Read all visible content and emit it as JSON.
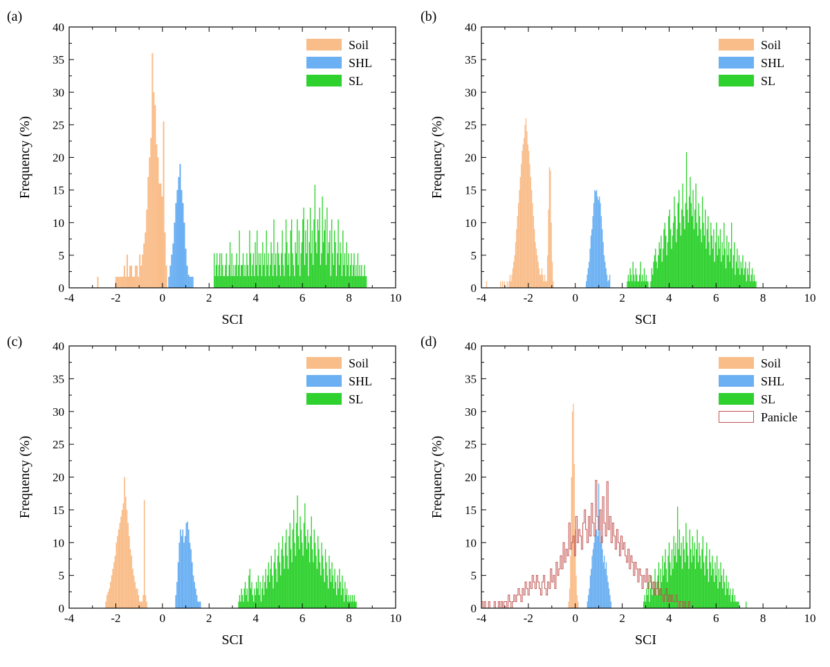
{
  "figure": {
    "description_colors": {
      "Soil": "#f9bd8a",
      "SHL": "#6bb0f2",
      "SL": "#2ed12e",
      "Panicle": "#c0504d"
    }
  },
  "chart_data": [
    {
      "panel": "(a)",
      "type": "histogram",
      "xlabel": "SCI",
      "ylabel": "Frequency (%)",
      "xlim": [
        -4,
        10
      ],
      "ylim": [
        0,
        40
      ],
      "xticks": [
        "-4",
        "-2",
        "0",
        "2",
        "4",
        "6",
        "8",
        "10"
      ],
      "yticks": [
        "0",
        "5",
        "10",
        "15",
        "20",
        "25",
        "30",
        "35",
        "40"
      ],
      "legend": [
        "Soil",
        "SHL",
        "SL"
      ],
      "series": [
        {
          "name": "Soil",
          "style": "bar",
          "color": "#f9bd8a",
          "bin_start": -2.8,
          "bin_width": 0.06,
          "values": [
            1.7,
            0,
            0,
            0,
            0,
            0,
            0,
            0,
            0,
            0,
            0,
            0,
            0,
            1.7,
            1.7,
            1.7,
            1.7,
            1.7,
            1.7,
            3.4,
            1.7,
            5.1,
            1.7,
            3.4,
            3.4,
            1.7,
            1.7,
            3.4,
            3.4,
            1.7,
            5.1,
            3.4,
            5.1,
            6.8,
            8.5,
            12,
            17,
            20,
            23,
            36,
            30,
            28,
            22,
            20,
            16,
            16,
            14,
            25.5,
            8.5,
            3.4
          ]
        },
        {
          "name": "SHL",
          "style": "bar",
          "color": "#6bb0f2",
          "bin_start": 0.25,
          "bin_width": 0.06,
          "values": [
            1.7,
            3.4,
            5.1,
            6.8,
            10,
            13,
            15,
            17,
            19,
            15,
            13,
            10,
            6,
            3.4,
            2,
            1.7,
            1.7,
            1.7
          ]
        },
        {
          "name": "SL",
          "style": "bar",
          "color": "#2ed12e",
          "bin_start": 2.2,
          "bin_width": 0.04,
          "values": [
            5.3,
            1.8,
            3.5,
            5.3,
            1.8,
            3.5,
            5.3,
            1.8,
            5.3,
            3.5,
            1.8,
            1.8,
            3.5,
            5.3,
            1.8,
            1.8,
            3.5,
            7,
            1.8,
            5.3,
            1.8,
            3.5,
            1.8,
            3.5,
            5.3,
            1.8,
            3.5,
            8.8,
            1.8,
            3.5,
            3.5,
            5.3,
            1.8,
            3.5,
            1.8,
            5.3,
            3.5,
            1.8,
            8.8,
            5.3,
            1.8,
            3.5,
            5.3,
            1.8,
            7,
            3.5,
            8.8,
            1.8,
            5.3,
            3.5,
            5.3,
            1.8,
            7,
            3.5,
            5.3,
            1.8,
            8.8,
            3.5,
            5.3,
            1.8,
            3.5,
            7,
            5.3,
            1.8,
            10.5,
            3.5,
            5.3,
            1.8,
            7,
            5.3,
            3.5,
            1.8,
            5.3,
            8.8,
            3.5,
            1.8,
            5.3,
            10.5,
            7,
            3.5,
            5.3,
            1.8,
            8.8,
            10.5,
            5.3,
            3.5,
            1.8,
            7,
            5.3,
            10.5,
            3.5,
            8.8,
            1.8,
            5.3,
            7,
            10.5,
            12.3,
            3.5,
            8.8,
            5.3,
            10.5,
            1.8,
            7,
            12.3,
            5.3,
            8.8,
            3.5,
            10.5,
            15.8,
            7,
            5.3,
            10.5,
            8.8,
            12.3,
            3.5,
            5.3,
            14,
            7,
            8.8,
            10.5,
            3.5,
            12.3,
            5.3,
            7,
            8.8,
            1.8,
            10.5,
            5.3,
            3.5,
            8.8,
            7,
            1.8,
            5.3,
            10.5,
            3.5,
            7,
            5.3,
            1.8,
            8.8,
            3.5,
            5.3,
            1.8,
            7,
            3.5,
            5.3,
            1.8,
            3.5,
            5.3,
            1.8,
            3.5,
            5.3,
            1.8,
            3.5,
            1.8,
            5.3,
            1.8,
            3.5,
            1.8,
            3.5,
            1.8,
            1.8,
            3.5,
            1.8,
            1.8
          ]
        }
      ]
    },
    {
      "panel": "(b)",
      "type": "histogram",
      "xlabel": "SCI",
      "ylabel": "Frequency (%)",
      "xlim": [
        -4,
        10
      ],
      "ylim": [
        0,
        40
      ],
      "xticks": [
        "-4",
        "-2",
        "0",
        "2",
        "4",
        "6",
        "8",
        "10"
      ],
      "yticks": [
        "0",
        "5",
        "10",
        "15",
        "20",
        "25",
        "30",
        "35",
        "40"
      ],
      "legend": [
        "Soil",
        "SHL",
        "SL"
      ],
      "series": [
        {
          "name": "Soil",
          "style": "bar",
          "color": "#f9bd8a",
          "bin_start": -3.8,
          "bin_width": 0.04,
          "values": [
            1,
            0,
            0,
            0,
            0,
            0,
            0,
            0,
            0,
            0,
            0,
            0,
            0,
            0,
            0,
            1,
            0,
            1,
            0,
            1,
            0,
            0,
            1,
            0,
            1,
            2,
            1,
            2,
            3,
            4,
            5,
            7,
            9,
            11,
            13,
            15,
            17,
            19,
            21,
            22,
            23,
            25,
            26,
            24,
            22,
            21,
            19,
            17,
            15,
            13,
            11,
            9,
            7,
            6,
            5,
            4,
            3,
            2,
            2,
            3,
            2,
            1,
            2,
            1,
            1,
            5,
            12,
            18.5,
            18,
            10,
            4,
            1
          ]
        },
        {
          "name": "SHL",
          "style": "bar",
          "color": "#6bb0f2",
          "bin_start": 0.45,
          "bin_width": 0.04,
          "values": [
            1,
            2,
            3,
            4,
            6,
            8,
            9,
            11,
            13,
            15,
            14.8,
            15,
            14,
            13.5,
            14,
            13,
            11,
            9,
            7,
            5,
            4,
            3,
            2,
            1,
            1.2,
            2
          ]
        },
        {
          "name": "SL",
          "style": "bar",
          "color": "#2ed12e",
          "bin_start": 2.2,
          "bin_width": 0.04,
          "values": [
            1,
            2,
            1,
            3,
            2,
            1,
            4,
            2,
            1,
            3,
            2,
            1,
            1,
            2,
            4,
            1,
            2,
            1,
            3,
            1,
            2,
            1,
            1,
            0,
            0,
            1,
            3,
            2,
            4,
            5,
            6,
            4,
            3,
            5,
            7,
            6,
            8,
            4,
            6,
            9,
            10,
            8,
            5,
            7,
            11,
            12,
            9,
            6,
            8,
            10,
            14,
            11,
            7,
            9,
            13,
            15,
            10,
            8,
            12,
            16,
            11,
            9,
            13,
            20.8,
            12,
            10,
            14,
            17,
            13,
            11,
            15,
            9,
            12,
            16,
            10,
            8,
            13,
            11,
            9,
            7,
            14,
            10,
            8,
            12,
            6,
            9,
            11,
            7,
            5,
            10,
            8,
            6,
            9,
            4,
            7,
            10,
            5,
            8,
            6,
            9,
            4,
            7,
            5,
            10,
            6,
            3,
            8,
            5,
            7,
            4,
            6,
            10,
            3,
            5,
            7,
            2,
            4,
            6,
            3,
            5,
            2,
            4,
            3,
            5,
            2,
            3,
            4,
            1,
            3,
            2,
            4,
            1,
            2,
            3,
            1,
            2,
            1,
            1
          ]
        }
      ]
    },
    {
      "panel": "(c)",
      "type": "histogram",
      "xlabel": "SCI",
      "ylabel": "Frequency (%)",
      "xlim": [
        -4,
        10
      ],
      "ylim": [
        0,
        40
      ],
      "xticks": [
        "-4",
        "-2",
        "0",
        "2",
        "4",
        "6",
        "8",
        "10"
      ],
      "yticks": [
        "0",
        "5",
        "10",
        "15",
        "20",
        "25",
        "30",
        "35",
        "40"
      ],
      "legend": [
        "Soil",
        "SHL",
        "SL"
      ],
      "series": [
        {
          "name": "Soil",
          "style": "bar",
          "color": "#f9bd8a",
          "bin_start": -2.45,
          "bin_width": 0.05,
          "values": [
            1,
            2,
            2.5,
            3,
            4,
            5,
            6,
            7,
            8,
            10,
            11,
            12,
            13,
            14,
            15,
            16,
            20,
            17,
            15,
            13,
            11,
            9,
            8,
            6,
            5,
            4,
            3,
            3,
            2,
            1,
            1,
            1,
            2,
            16.5,
            2,
            1
          ]
        },
        {
          "name": "SHL",
          "style": "bar",
          "color": "#6bb0f2",
          "bin_start": 0.55,
          "bin_width": 0.05,
          "values": [
            2,
            4,
            7,
            10,
            12,
            11,
            12,
            10,
            11,
            13,
            13.2,
            12,
            10,
            9,
            7,
            5,
            4,
            3,
            2,
            1,
            1,
            1
          ]
        },
        {
          "name": "SL",
          "style": "bar",
          "color": "#2ed12e",
          "bin_start": 3.25,
          "bin_width": 0.04,
          "values": [
            1,
            2,
            1,
            3,
            2,
            1,
            3,
            4,
            2,
            3,
            1,
            5,
            6,
            3,
            4,
            2,
            1,
            3,
            2,
            4,
            3,
            5,
            2,
            4,
            1,
            3,
            5,
            2,
            4,
            6,
            3,
            5,
            7,
            4,
            6,
            8,
            5,
            3,
            7,
            9,
            6,
            4,
            8,
            10,
            7,
            5,
            9,
            11,
            8,
            6,
            10,
            12,
            8,
            6,
            11,
            13,
            9,
            7,
            12,
            15,
            10,
            8,
            13,
            17.2,
            11,
            9,
            14,
            12,
            10,
            8,
            13,
            16,
            11,
            9,
            12,
            10,
            7,
            11,
            14,
            9,
            7,
            12,
            10,
            8,
            6,
            11,
            9,
            7,
            5,
            10,
            8,
            6,
            4,
            9,
            7,
            5,
            3,
            8,
            6,
            4,
            7,
            5,
            3,
            6,
            4,
            2,
            5,
            3,
            6,
            4,
            2,
            5,
            3,
            1,
            4,
            2,
            3,
            1,
            2,
            1,
            2,
            1,
            2,
            1,
            2,
            1,
            1
          ]
        }
      ]
    },
    {
      "panel": "(d)",
      "type": "histogram",
      "xlabel": "SCI",
      "ylabel": "Frequency (%)",
      "xlim": [
        -4,
        10
      ],
      "ylim": [
        0,
        40
      ],
      "xticks": [
        "-4",
        "-2",
        "0",
        "2",
        "4",
        "6",
        "8",
        "10"
      ],
      "yticks": [
        "0",
        "5",
        "10",
        "15",
        "20",
        "25",
        "30",
        "35",
        "40"
      ],
      "legend": [
        "Soil",
        "SHL",
        "SL",
        "Panicle"
      ],
      "series": [
        {
          "name": "Soil",
          "style": "bar",
          "color": "#f9bd8a",
          "bin_start": -0.3,
          "bin_width": 0.04,
          "values": [
            1,
            3,
            8,
            20,
            30,
            31.2,
            22,
            12,
            5,
            2,
            1
          ]
        },
        {
          "name": "SHL",
          "style": "bar",
          "color": "#6bb0f2",
          "bin_start": 0.5,
          "bin_width": 0.04,
          "values": [
            1,
            2,
            3,
            5,
            6,
            8,
            9,
            10,
            11,
            12,
            12,
            11,
            19,
            12,
            10,
            11,
            9,
            7,
            8,
            6,
            7,
            5,
            4,
            3,
            2,
            1
          ]
        },
        {
          "name": "SL",
          "style": "bar",
          "color": "#2ed12e",
          "bin_start": 2.9,
          "bin_width": 0.04,
          "values": [
            1,
            2,
            1,
            3,
            2,
            4,
            1,
            3,
            5,
            2,
            4,
            3,
            6,
            4,
            2,
            5,
            7,
            3,
            6,
            4,
            8,
            5,
            7,
            9,
            6,
            4,
            8,
            10,
            7,
            5,
            9,
            6,
            11,
            8,
            10,
            7,
            15.5,
            9,
            12,
            8,
            10,
            6,
            11,
            9,
            7,
            13,
            10,
            8,
            6,
            12,
            9,
            7,
            11,
            8,
            10,
            6,
            9,
            12,
            7,
            10,
            8,
            6,
            9,
            11,
            7,
            5,
            8,
            10,
            6,
            4,
            9,
            7,
            5,
            8,
            6,
            4,
            7,
            5,
            8,
            3,
            6,
            4,
            7,
            5,
            3,
            6,
            4,
            2,
            5,
            3,
            4,
            2,
            3,
            1,
            2,
            3,
            1,
            2,
            1,
            1,
            1,
            1,
            0,
            0,
            0,
            0,
            0,
            0,
            0,
            1
          ]
        },
        {
          "name": "Panicle",
          "style": "outline",
          "color": "#c0504d",
          "bin_start": -4.0,
          "bin_width": 0.06,
          "values": [
            1,
            0,
            1,
            0,
            0,
            1,
            0,
            0,
            0,
            1,
            0,
            0,
            1,
            0,
            1,
            0,
            1,
            1,
            0,
            2,
            1,
            0,
            1,
            2,
            1,
            2,
            3,
            2,
            1,
            3,
            2,
            4,
            3,
            2,
            4,
            3,
            5,
            4,
            3,
            5,
            4,
            3,
            2,
            4,
            5,
            3,
            2,
            4,
            3,
            6,
            4,
            5,
            3,
            7,
            5,
            6,
            8,
            6,
            10,
            7,
            9,
            8,
            13,
            9,
            10,
            11,
            8,
            14,
            10,
            12,
            11,
            9,
            13,
            15,
            12,
            10,
            14,
            11,
            16,
            13,
            11,
            19.5,
            14,
            12,
            15,
            10,
            17,
            13,
            11,
            19.3,
            12,
            14,
            10,
            13,
            11,
            9,
            12,
            10,
            8,
            11,
            9,
            10,
            8,
            7,
            9,
            6,
            8,
            7,
            5,
            7,
            6,
            4,
            6,
            5,
            3,
            5,
            4,
            6,
            3,
            5,
            4,
            3,
            4,
            2,
            3,
            4,
            2,
            3,
            2,
            1,
            2,
            3,
            1,
            2,
            1,
            2,
            1,
            1,
            2,
            1,
            0,
            1,
            1,
            0,
            1,
            0,
            0,
            1
          ]
        }
      ]
    }
  ]
}
